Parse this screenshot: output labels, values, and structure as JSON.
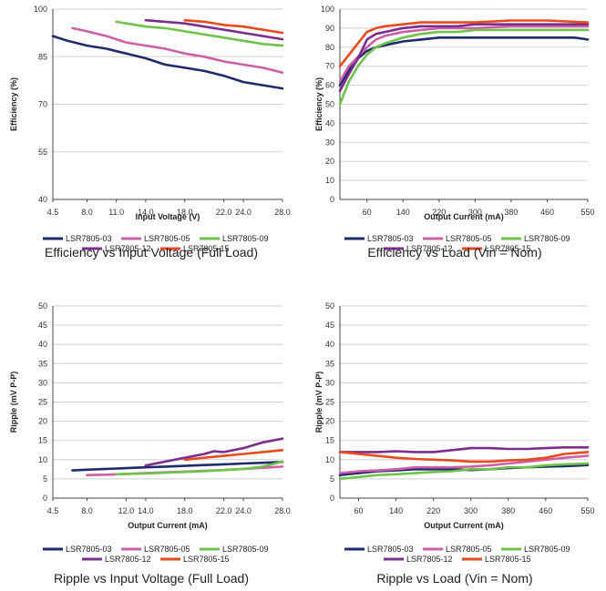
{
  "chart_data": [
    {
      "type": "line",
      "title": "Efficiency vs Input Voltage (Full Load)",
      "xlabel": "Input Voltage (V)",
      "ylabel": "Efficiency (%)",
      "xlim": [
        4.5,
        28.0
      ],
      "ylim": [
        40,
        100
      ],
      "x_ticks": [
        "4.5",
        "8.0",
        "11.0",
        "14.0",
        "18.0",
        "22.0",
        "24.0",
        "28.0"
      ],
      "y_ticks": [
        "40",
        "55",
        "70",
        "85",
        "100"
      ],
      "grid": true,
      "legend": "bottom",
      "series": [
        {
          "name": "LSR7805-03",
          "color": "#1f2a6b",
          "x": [
            4.5,
            6.0,
            8.0,
            10.0,
            12.0,
            14.0,
            16.0,
            18.0,
            20.0,
            22.0,
            24.0,
            26.0,
            28.0
          ],
          "y": [
            91.5,
            90.0,
            88.5,
            87.5,
            86.0,
            84.5,
            82.5,
            81.5,
            80.5,
            79.0,
            77.0,
            76.0,
            75.0
          ]
        },
        {
          "name": "LSR7805-05",
          "color": "#cc5fa8",
          "x": [
            6.5,
            8.0,
            10.0,
            12.0,
            14.0,
            16.0,
            18.0,
            20.0,
            22.0,
            24.0,
            26.0,
            28.0
          ],
          "y": [
            94.0,
            93.0,
            91.5,
            89.5,
            88.5,
            87.5,
            86.0,
            85.0,
            83.5,
            82.5,
            81.5,
            80.0
          ]
        },
        {
          "name": "LSR7805-09",
          "color": "#6fc24a",
          "x": [
            11.0,
            12.0,
            14.0,
            16.0,
            18.0,
            20.0,
            22.0,
            24.0,
            26.0,
            28.0
          ],
          "y": [
            96.0,
            95.5,
            94.5,
            94.0,
            93.0,
            92.0,
            91.0,
            90.0,
            89.0,
            88.5
          ]
        },
        {
          "name": "LSR7805-12",
          "color": "#7b2d8e",
          "x": [
            14.0,
            16.0,
            18.0,
            20.0,
            22.0,
            24.0,
            26.0,
            28.0
          ],
          "y": [
            96.5,
            96.0,
            95.5,
            94.5,
            93.5,
            92.5,
            91.5,
            90.5
          ]
        },
        {
          "name": "LSR7805-15",
          "color": "#e84a1c",
          "x": [
            18.0,
            20.0,
            22.0,
            24.0,
            26.0,
            28.0
          ],
          "y": [
            96.5,
            96.0,
            95.0,
            94.5,
            93.5,
            92.5
          ]
        }
      ]
    },
    {
      "type": "line",
      "title": "Efficiency vs Load (Vin = Nom)",
      "xlabel": "Output Current (mA)",
      "ylabel": "Efficiency (%)",
      "xlim": [
        0,
        550
      ],
      "ylim": [
        0,
        100
      ],
      "x_ticks": [
        "60",
        "140",
        "220",
        "300",
        "380",
        "460",
        "550"
      ],
      "y_ticks": [
        "0",
        "10",
        "20",
        "30",
        "40",
        "50",
        "60",
        "70",
        "80",
        "90",
        "100"
      ],
      "grid": true,
      "legend": "bottom",
      "series": [
        {
          "name": "LSR7805-03",
          "color": "#1f2a6b",
          "x": [
            0,
            20,
            40,
            60,
            80,
            100,
            140,
            180,
            220,
            260,
            300,
            380,
            460,
            520,
            550
          ],
          "y": [
            60,
            68,
            74,
            78,
            80,
            81,
            83,
            84,
            85,
            85,
            85,
            85,
            85,
            85,
            84
          ]
        },
        {
          "name": "LSR7805-05",
          "color": "#cc5fa8",
          "x": [
            0,
            20,
            40,
            60,
            80,
            100,
            140,
            180,
            220,
            260,
            300,
            380,
            460,
            550
          ],
          "y": [
            62,
            70,
            75,
            80,
            84,
            86,
            88,
            89,
            90,
            90,
            90,
            91,
            91,
            91
          ]
        },
        {
          "name": "LSR7805-09",
          "color": "#6fc24a",
          "x": [
            0,
            20,
            40,
            60,
            80,
            100,
            140,
            180,
            220,
            260,
            300,
            380,
            460,
            550
          ],
          "y": [
            50,
            62,
            70,
            76,
            80,
            82,
            85,
            87,
            88,
            88,
            89,
            89,
            89,
            89
          ]
        },
        {
          "name": "LSR7805-12",
          "color": "#7b2d8e",
          "x": [
            0,
            20,
            40,
            60,
            80,
            100,
            140,
            180,
            220,
            260,
            300,
            380,
            460,
            550
          ],
          "y": [
            57,
            66,
            74,
            84,
            87,
            88,
            90,
            91,
            91,
            91,
            92,
            92,
            92,
            92
          ]
        },
        {
          "name": "LSR7805-15",
          "color": "#e84a1c",
          "x": [
            0,
            20,
            40,
            60,
            80,
            100,
            140,
            180,
            220,
            260,
            300,
            380,
            460,
            550
          ],
          "y": [
            70,
            76,
            82,
            88,
            90,
            91,
            92,
            93,
            93,
            93,
            93,
            94,
            94,
            93
          ]
        }
      ]
    },
    {
      "type": "line",
      "title": "Ripple vs Input Voltage (Full Load)",
      "xlabel": "Output Current (mA)",
      "ylabel": "Ripple (mV P-P)",
      "xlim": [
        4.5,
        28.0
      ],
      "ylim": [
        0,
        50
      ],
      "x_ticks": [
        "4.5",
        "8.0",
        "12.0",
        "14.0",
        "18.0",
        "22.0",
        "24.0",
        "28.0"
      ],
      "y_ticks": [
        "0",
        "5",
        "10",
        "15",
        "20",
        "25",
        "30",
        "35",
        "40",
        "45",
        "50"
      ],
      "grid": true,
      "legend": "bottom",
      "series": [
        {
          "name": "LSR7805-03",
          "color": "#1f2a6b",
          "x": [
            6.5,
            8.0,
            10.0,
            12.0,
            14.0,
            16.0,
            18.0,
            20.0,
            22.0,
            24.0,
            26.0,
            28.0
          ],
          "y": [
            7.2,
            7.4,
            7.6,
            7.8,
            8.0,
            8.2,
            8.4,
            8.6,
            8.8,
            9.0,
            9.2,
            9.4
          ]
        },
        {
          "name": "LSR7805-05",
          "color": "#cc5fa8",
          "x": [
            8.0,
            10.0,
            12.0,
            14.0,
            16.0,
            18.0,
            20.0,
            22.0,
            24.0,
            26.0,
            28.0
          ],
          "y": [
            6.0,
            6.1,
            6.3,
            6.5,
            6.7,
            6.9,
            7.1,
            7.3,
            7.6,
            7.9,
            8.2
          ]
        },
        {
          "name": "LSR7805-09",
          "color": "#6fc24a",
          "x": [
            11.0,
            12.0,
            14.0,
            16.0,
            18.0,
            20.0,
            22.0,
            24.0,
            26.0,
            28.0
          ],
          "y": [
            6.2,
            6.3,
            6.4,
            6.6,
            6.8,
            7.0,
            7.3,
            7.6,
            8.2,
            9.5
          ]
        },
        {
          "name": "LSR7805-12",
          "color": "#7b2d8e",
          "x": [
            14.0,
            16.0,
            18.0,
            20.0,
            21.0,
            22.0,
            24.0,
            26.0,
            28.0
          ],
          "y": [
            8.5,
            9.5,
            10.5,
            11.5,
            12.2,
            12.0,
            13.0,
            14.5,
            15.5
          ]
        },
        {
          "name": "LSR7805-15",
          "color": "#e84a1c",
          "x": [
            18.0,
            20.0,
            22.0,
            24.0,
            26.0,
            28.0
          ],
          "y": [
            10.0,
            10.5,
            11.0,
            11.5,
            12.0,
            12.5
          ]
        }
      ]
    },
    {
      "type": "line",
      "title": "Ripple vs Load (Vin = Nom)",
      "xlabel": "Output Current (mA)",
      "ylabel": "Ripple (mV P-P)",
      "xlim": [
        20,
        550
      ],
      "ylim": [
        0,
        50
      ],
      "x_ticks": [
        "60",
        "140",
        "220",
        "300",
        "380",
        "460",
        "550"
      ],
      "y_ticks": [
        "0",
        "5",
        "10",
        "15",
        "20",
        "25",
        "30",
        "35",
        "40",
        "45",
        "50"
      ],
      "grid": true,
      "legend": "bottom",
      "series": [
        {
          "name": "LSR7805-03",
          "color": "#1f2a6b",
          "x": [
            20,
            60,
            100,
            140,
            180,
            220,
            260,
            300,
            340,
            380,
            420,
            460,
            500,
            550
          ],
          "y": [
            6.0,
            6.5,
            7.0,
            7.2,
            7.5,
            7.5,
            7.5,
            7.3,
            7.5,
            7.8,
            8.0,
            8.2,
            8.3,
            8.6
          ]
        },
        {
          "name": "LSR7805-05",
          "color": "#cc5fa8",
          "x": [
            20,
            60,
            100,
            140,
            180,
            220,
            260,
            300,
            340,
            380,
            420,
            460,
            500,
            550
          ],
          "y": [
            6.5,
            7.0,
            7.2,
            7.5,
            8.0,
            8.0,
            8.0,
            8.2,
            8.5,
            9.0,
            9.5,
            10.0,
            10.5,
            11.0
          ]
        },
        {
          "name": "LSR7805-09",
          "color": "#6fc24a",
          "x": [
            20,
            60,
            100,
            140,
            180,
            220,
            260,
            300,
            340,
            380,
            420,
            460,
            500,
            550
          ],
          "y": [
            5.0,
            5.5,
            6.0,
            6.2,
            6.5,
            6.8,
            7.0,
            7.5,
            7.5,
            8.0,
            8.0,
            8.5,
            8.8,
            9.0
          ]
        },
        {
          "name": "LSR7805-12",
          "color": "#7b2d8e",
          "x": [
            20,
            60,
            100,
            140,
            180,
            220,
            260,
            300,
            340,
            380,
            420,
            460,
            500,
            550
          ],
          "y": [
            12.0,
            12.0,
            12.0,
            12.2,
            12.0,
            12.0,
            12.5,
            13.0,
            13.0,
            12.8,
            12.8,
            13.0,
            13.2,
            13.2
          ]
        },
        {
          "name": "LSR7805-15",
          "color": "#e84a1c",
          "x": [
            20,
            60,
            100,
            140,
            180,
            220,
            260,
            300,
            340,
            380,
            420,
            460,
            500,
            550
          ],
          "y": [
            12.0,
            11.5,
            11.0,
            10.5,
            10.2,
            10.0,
            9.8,
            9.5,
            9.5,
            9.8,
            10.0,
            10.5,
            11.5,
            12.0
          ]
        }
      ]
    }
  ]
}
